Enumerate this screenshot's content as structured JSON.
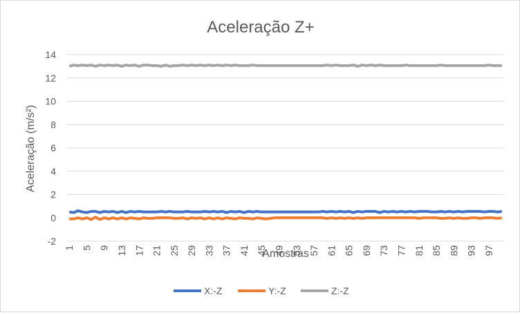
{
  "chart_data": {
    "type": "line",
    "title": "Aceleração Z+",
    "xlabel": "Amostras",
    "ylabel": "Aceleração (m/s²)",
    "ylim": [
      -2,
      14
    ],
    "yticks": [
      -2,
      0,
      2,
      4,
      6,
      8,
      10,
      12,
      14
    ],
    "x_count": 100,
    "x_tick_labels": [
      1,
      5,
      9,
      13,
      17,
      21,
      25,
      29,
      33,
      37,
      41,
      45,
      49,
      53,
      57,
      61,
      65,
      69,
      73,
      77,
      81,
      85,
      89,
      93,
      97
    ],
    "grid": "horizontal",
    "legend_position": "bottom",
    "series": [
      {
        "name": "X:-Z",
        "color": "#4472c4",
        "values": [
          0.5,
          0.45,
          0.6,
          0.5,
          0.45,
          0.55,
          0.55,
          0.45,
          0.55,
          0.5,
          0.55,
          0.45,
          0.55,
          0.45,
          0.55,
          0.5,
          0.55,
          0.5,
          0.5,
          0.5,
          0.5,
          0.55,
          0.5,
          0.55,
          0.5,
          0.5,
          0.5,
          0.55,
          0.5,
          0.5,
          0.5,
          0.55,
          0.5,
          0.55,
          0.5,
          0.55,
          0.45,
          0.55,
          0.5,
          0.55,
          0.45,
          0.55,
          0.5,
          0.55,
          0.5,
          0.5,
          0.5,
          0.5,
          0.5,
          0.5,
          0.5,
          0.5,
          0.5,
          0.5,
          0.5,
          0.5,
          0.5,
          0.5,
          0.55,
          0.5,
          0.55,
          0.5,
          0.55,
          0.5,
          0.55,
          0.45,
          0.55,
          0.5,
          0.55,
          0.55,
          0.55,
          0.45,
          0.55,
          0.5,
          0.55,
          0.5,
          0.55,
          0.5,
          0.55,
          0.5,
          0.55,
          0.55,
          0.55,
          0.5,
          0.5,
          0.55,
          0.5,
          0.55,
          0.5,
          0.55,
          0.5,
          0.55,
          0.55,
          0.55,
          0.55,
          0.5,
          0.55,
          0.55,
          0.5,
          0.55
        ]
      },
      {
        "name": "Y:-Z",
        "color": "#ed7d31",
        "values": [
          -0.1,
          -0.1,
          0.0,
          -0.1,
          0.0,
          -0.15,
          0.05,
          -0.15,
          0.0,
          -0.1,
          0.0,
          -0.1,
          0.0,
          -0.1,
          0.0,
          -0.05,
          -0.1,
          0.0,
          -0.05,
          -0.05,
          0.0,
          0.0,
          0.0,
          0.0,
          -0.05,
          -0.05,
          0.0,
          -0.1,
          0.0,
          -0.05,
          0.0,
          -0.1,
          0.0,
          -0.1,
          0.0,
          -0.1,
          0.0,
          -0.05,
          -0.1,
          0.0,
          -0.05,
          -0.05,
          -0.1,
          0.0,
          -0.05,
          -0.1,
          -0.05,
          0.0,
          0.0,
          0.0,
          0.0,
          0.0,
          0.0,
          0.0,
          0.0,
          0.0,
          0.0,
          0.0,
          0.0,
          -0.05,
          0.0,
          -0.05,
          0.0,
          -0.05,
          0.0,
          -0.05,
          0.0,
          -0.05,
          0.0,
          0.0,
          0.0,
          0.0,
          0.0,
          0.0,
          0.0,
          0.0,
          0.0,
          0.0,
          0.0,
          0.0,
          -0.05,
          0.0,
          0.0,
          0.0,
          0.0,
          -0.05,
          -0.05,
          0.0,
          -0.05,
          0.0,
          -0.05,
          -0.05,
          0.0,
          0.0,
          -0.05,
          0.0,
          0.0,
          0.0,
          -0.05,
          0.0
        ]
      },
      {
        "name": "Z:-Z",
        "color": "#a5a5a5",
        "values": [
          13.0,
          13.1,
          13.05,
          13.1,
          13.05,
          13.1,
          13.0,
          13.1,
          13.05,
          13.1,
          13.05,
          13.1,
          13.0,
          13.1,
          13.05,
          13.1,
          13.0,
          13.1,
          13.1,
          13.05,
          13.05,
          13.0,
          13.1,
          13.0,
          13.05,
          13.05,
          13.1,
          13.05,
          13.1,
          13.05,
          13.1,
          13.05,
          13.1,
          13.05,
          13.1,
          13.05,
          13.1,
          13.05,
          13.1,
          13.05,
          13.05,
          13.05,
          13.1,
          13.05,
          13.05,
          13.05,
          13.05,
          13.05,
          13.05,
          13.05,
          13.05,
          13.05,
          13.05,
          13.05,
          13.05,
          13.05,
          13.05,
          13.05,
          13.05,
          13.1,
          13.05,
          13.1,
          13.05,
          13.05,
          13.05,
          13.1,
          13.0,
          13.1,
          13.05,
          13.1,
          13.05,
          13.1,
          13.05,
          13.05,
          13.05,
          13.05,
          13.05,
          13.1,
          13.05,
          13.05,
          13.05,
          13.05,
          13.05,
          13.05,
          13.05,
          13.1,
          13.05,
          13.05,
          13.05,
          13.05,
          13.05,
          13.05,
          13.05,
          13.05,
          13.05,
          13.05,
          13.1,
          13.05,
          13.05,
          13.05
        ]
      }
    ]
  }
}
